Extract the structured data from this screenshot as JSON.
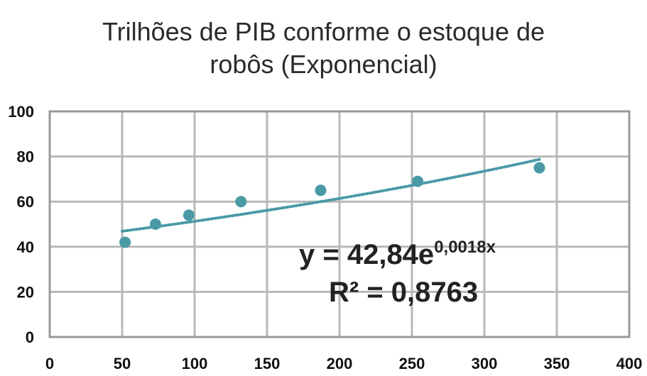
{
  "chart_data": {
    "type": "scatter",
    "title_lines": [
      "Trilhões de PIB conforme o estoque de",
      "robôs (Exponencial)"
    ],
    "xlabel": "",
    "ylabel": "",
    "xlim": [
      0,
      400
    ],
    "ylim": [
      0,
      100
    ],
    "x_ticks": [
      0,
      50,
      100,
      150,
      200,
      250,
      300,
      350,
      400
    ],
    "y_ticks": [
      0,
      20,
      40,
      60,
      80,
      100
    ],
    "grid": true,
    "legend": "none",
    "series": [
      {
        "x": [
          52,
          73,
          96,
          132,
          187,
          254,
          338
        ],
        "y": [
          42,
          50,
          54,
          60,
          65,
          69,
          75
        ]
      }
    ],
    "trendline": {
      "type": "exponential",
      "a": 42.84,
      "b": 0.0018,
      "x_range": [
        50,
        338
      ],
      "equation_base": "y = 42,84e",
      "equation_exponent": "0,0018x",
      "r_squared_text": "R² = 0,8763"
    },
    "colors": {
      "marker": "#4a9aa6",
      "trendline": "#4a9aa6",
      "grid": "#b8b8b8",
      "plot_border": "#999999"
    }
  }
}
